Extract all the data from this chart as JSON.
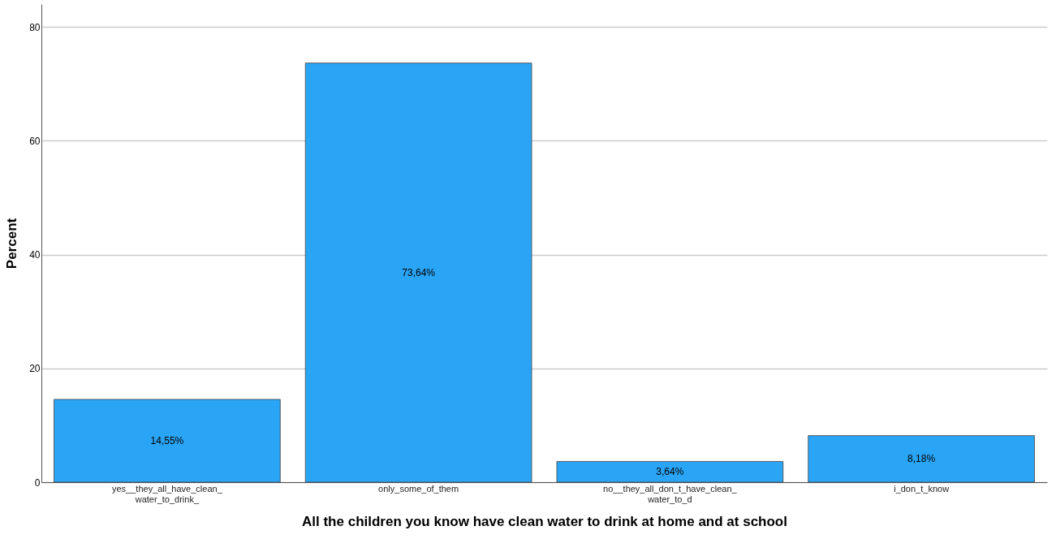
{
  "chart_data": {
    "type": "bar",
    "xlabel": "All the children you know have clean water to drink at home and at school",
    "ylabel": "Percent",
    "categories": [
      "yes__they_all_have_clean_\nwater_to_drink_",
      "only_some_of_them",
      "no__they_all_don_t_have_clean_\nwater_to_d",
      "i_don_t_know"
    ],
    "values": [
      14.55,
      73.64,
      3.64,
      8.18
    ],
    "value_labels": [
      "14,55%",
      "73,64%",
      "3,64%",
      "8,18%"
    ],
    "color": "#2aa4f4",
    "ylim": [
      0,
      84
    ],
    "yticks": [
      0,
      20,
      40,
      60,
      80
    ],
    "grid": "y"
  }
}
